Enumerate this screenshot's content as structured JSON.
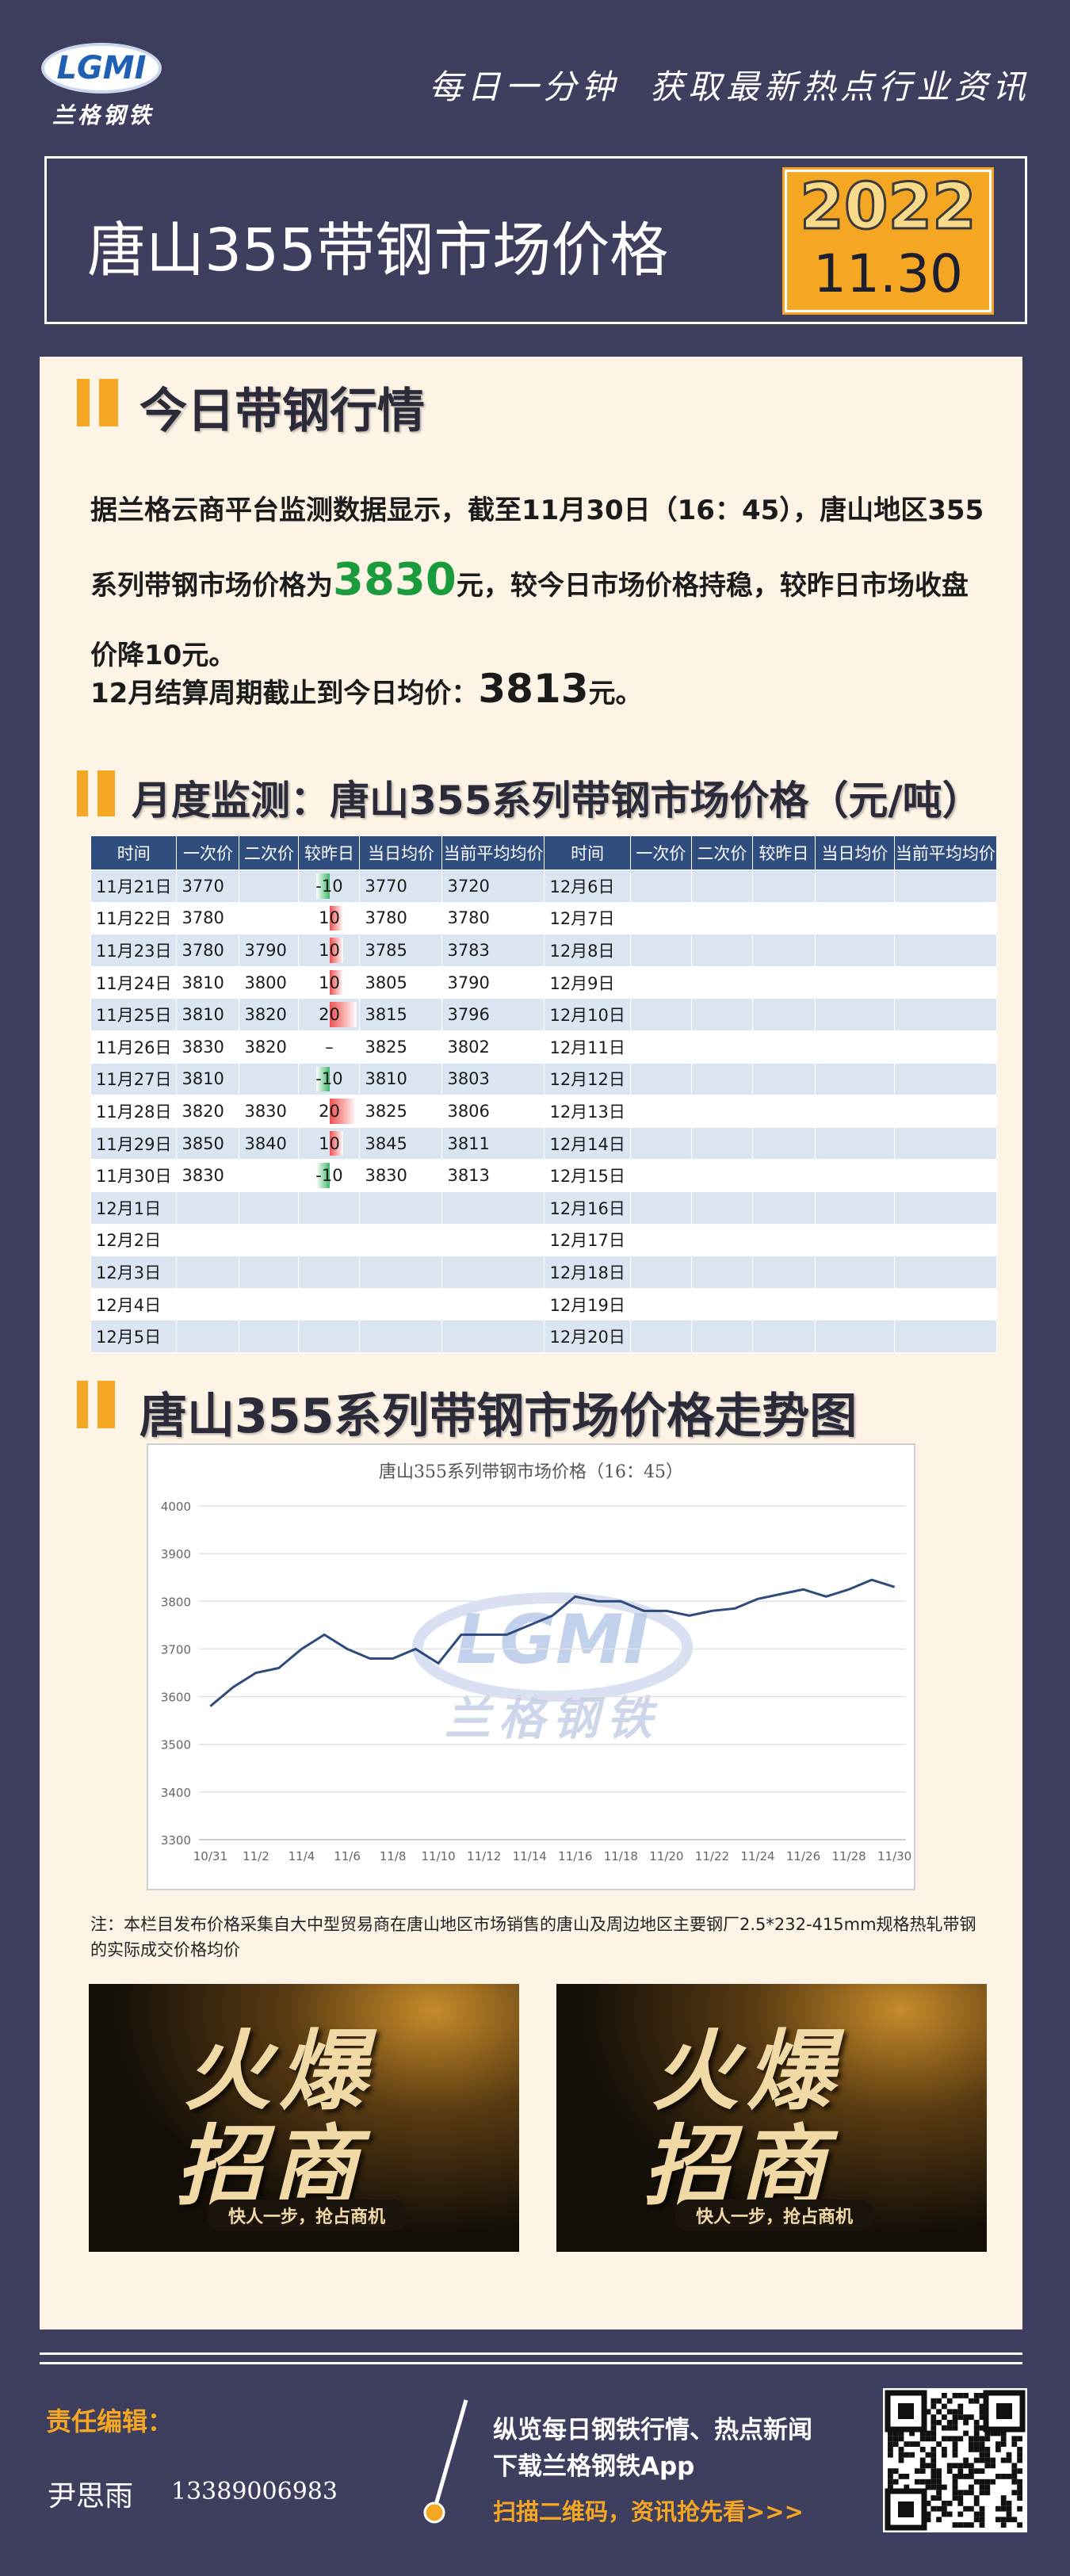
{
  "header": {
    "logo": "LGMI",
    "brand": "兰格钢铁",
    "slogan": "每日一分钟  获取最新热点行业资讯"
  },
  "banner": {
    "title": "唐山355带钢市场价格",
    "year": "2022",
    "date": "11.30"
  },
  "today": {
    "heading": "今日带钢行情",
    "text_before": "据兰格云商平台监测数据显示，截至11月30日（16：45），唐山地区355系列带钢市场价格为",
    "price": 3830,
    "text_after": "元，较今日市场价格持稳，较昨日市场收盘价降10元。",
    "avg_label": "12月结算周期截止到今日均价：",
    "avg": 3813,
    "avg_unit": "元。"
  },
  "monthly": {
    "heading": "月度监测：唐山355系列带钢市场价格（元/吨）",
    "table": {
      "columns": [
        "时间",
        "一次价",
        "二次价",
        "较昨日",
        "当日均价",
        "当前平均均价",
        "时间",
        "一次价",
        "二次价",
        "较昨日",
        "当日均价",
        "当前平均均价"
      ],
      "rows": [
        [
          "11月21日",
          3770,
          null,
          -10,
          3770,
          3720,
          "12月6日",
          null,
          null,
          null,
          null,
          null
        ],
        [
          "11月22日",
          3780,
          null,
          10,
          3780,
          3780,
          "12月7日",
          null,
          null,
          null,
          null,
          null
        ],
        [
          "11月23日",
          3780,
          3790,
          10,
          3785,
          3783,
          "12月8日",
          null,
          null,
          null,
          null,
          null
        ],
        [
          "11月24日",
          3810,
          3800,
          10,
          3805,
          3790,
          "12月9日",
          null,
          null,
          null,
          null,
          null
        ],
        [
          "11月25日",
          3810,
          3820,
          20,
          3815,
          3796,
          "12月10日",
          null,
          null,
          null,
          null,
          null
        ],
        [
          "11月26日",
          3830,
          3820,
          "–",
          3825,
          3802,
          "12月11日",
          null,
          null,
          null,
          null,
          null
        ],
        [
          "11月27日",
          3810,
          null,
          -10,
          3810,
          3803,
          "12月12日",
          null,
          null,
          null,
          null,
          null
        ],
        [
          "11月28日",
          3820,
          3830,
          20,
          3825,
          3806,
          "12月13日",
          null,
          null,
          null,
          null,
          null
        ],
        [
          "11月29日",
          3850,
          3840,
          10,
          3845,
          3811,
          "12月14日",
          null,
          null,
          null,
          null,
          null
        ],
        [
          "11月30日",
          3830,
          null,
          -10,
          3830,
          3813,
          "12月15日",
          null,
          null,
          null,
          null,
          null
        ],
        [
          "12月1日",
          null,
          null,
          null,
          null,
          null,
          "12月16日",
          null,
          null,
          null,
          null,
          null
        ],
        [
          "12月2日",
          null,
          null,
          null,
          null,
          null,
          "12月17日",
          null,
          null,
          null,
          null,
          null
        ],
        [
          "12月3日",
          null,
          null,
          null,
          null,
          null,
          "12月18日",
          null,
          null,
          null,
          null,
          null
        ],
        [
          "12月4日",
          null,
          null,
          null,
          null,
          null,
          "12月19日",
          null,
          null,
          null,
          null,
          null
        ],
        [
          "12月5日",
          null,
          null,
          null,
          null,
          null,
          "12月20日",
          null,
          null,
          null,
          null,
          null
        ]
      ]
    }
  },
  "trend": {
    "heading": "唐山355系列带钢市场价格走势图"
  },
  "chart_data": {
    "type": "line",
    "title": "唐山355系列带钢市场价格（16：45）",
    "categories": [
      "10/31",
      null,
      "11/2",
      null,
      "11/4",
      null,
      "11/6",
      null,
      "11/8",
      null,
      "11/10",
      null,
      "11/12",
      null,
      "11/14",
      null,
      "11/16",
      null,
      "11/18",
      null,
      "11/20",
      null,
      "11/22",
      null,
      "11/24",
      null,
      "11/26",
      null,
      "11/28",
      null,
      "11/30"
    ],
    "values": [
      3580,
      3620,
      3650,
      3660,
      3700,
      3730,
      3700,
      3680,
      3680,
      3700,
      3670,
      3730,
      3730,
      3730,
      3750,
      3770,
      3810,
      3800,
      3800,
      3780,
      3780,
      3770,
      3780,
      3785,
      3805,
      3815,
      3825,
      3810,
      3825,
      3845,
      3830
    ],
    "color": "#2f4a7c",
    "ylim": [
      3300,
      4000
    ],
    "yticks": [
      3300,
      3400,
      3500,
      3600,
      3700,
      3800,
      3900,
      4000
    ],
    "grid": true
  },
  "watermark": {
    "logo": "LGMI",
    "brand": "兰格钢铁"
  },
  "note": "注：本栏目发布价格采集自大中型贸易商在唐山地区市场销售的唐山及周边地区主要钢厂2.5*232-415mm规格热轧带钢的实际成交价格均价",
  "ads": [
    {
      "line1": "火爆",
      "line2": "招商",
      "tagline": "快人一步，抢占商机"
    },
    {
      "line1": "火爆",
      "line2": "招商",
      "tagline": "快人一步，抢占商机"
    }
  ],
  "footer": {
    "editor_label": "责任编辑：",
    "editor": "尹思雨",
    "phone": "13389006983",
    "line1": "纵览每日钢铁行情、热点新闻",
    "line2": "下载兰格钢铁App",
    "line3": "扫描二维码，资讯抢先看>>>"
  }
}
